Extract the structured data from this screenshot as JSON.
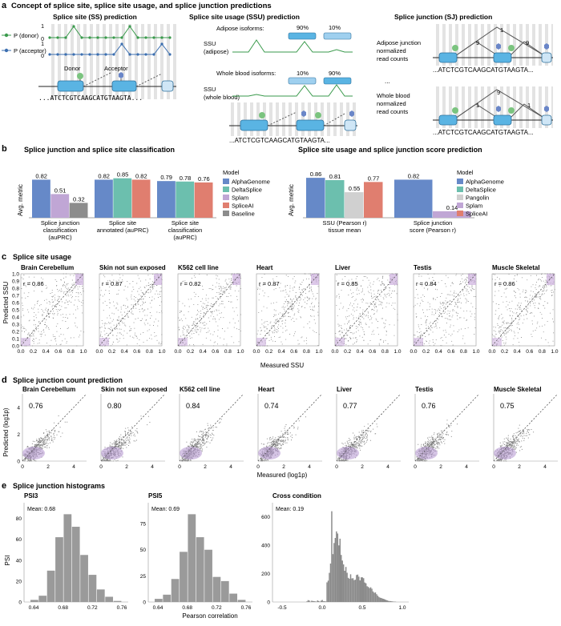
{
  "panel_a": {
    "letter": "a",
    "title": "Concept of splice site, splice site usage, and splice junction predictions",
    "ss": {
      "title": "Splice site (SS) prediction",
      "legend_donor": "P (donor)",
      "legend_acceptor": "P (acceptor)",
      "tick1": "1",
      "tick0": "0",
      "donor_label": "Donor",
      "acceptor_label": "Acceptor",
      "sequence": "...ATCTCGTCAAGCATGTAAGTA..."
    },
    "ssu": {
      "title": "Splice site usage (SSU) prediction",
      "adipose_isoforms": "Adipose isoforms:",
      "adipose_pct1": "90%",
      "adipose_pct2": "10%",
      "ssu_label": "SSU",
      "adipose_sub": "(adipose)",
      "blood_isoforms": "Whole blood isoforms:",
      "blood_pct1": "10%",
      "blood_pct2": "90%",
      "blood_sub": "(whole blood)",
      "sequence": "...ATCTCGTCAAGCATGTAAGTA..."
    },
    "sj": {
      "title": "Splice junction (SJ) prediction",
      "adipose_label": [
        "Adipose junction",
        "normalized",
        "read counts"
      ],
      "ellipsis": "...",
      "blood_label": [
        "Whole blood",
        "normalized",
        "read counts"
      ],
      "adipose_counts": [
        "1",
        "9",
        "9"
      ],
      "blood_counts": [
        "9",
        "1",
        "1"
      ],
      "sequence": "...ATCTCGTCAAGCATGTAAGTA..."
    }
  },
  "panel_b": {
    "letter": "b",
    "left": {
      "title": "Splice junction and splice site classification",
      "ylabel": "Avg. metric",
      "legend_title": "Model",
      "legend": [
        "AlphaGenome",
        "DeltaSplice",
        "Splam",
        "SpliceAI",
        "Baseline"
      ],
      "colors": {
        "AlphaGenome": "#6689c8",
        "DeltaSplice": "#6cbfae",
        "Splam": "#c0a6d5",
        "SpliceAI": "#e07e6f",
        "Baseline": "#8c8c8c"
      }
    },
    "right": {
      "title": "Splice site usage and splice junction score prediction",
      "ylabel": "Avg. metric",
      "legend_title": "Model",
      "legend": [
        "AlphaGenome",
        "DeltaSplice",
        "Pangolin",
        "Splam",
        "SpliceAI"
      ],
      "colors": {
        "AlphaGenome": "#6689c8",
        "DeltaSplice": "#6cbfae",
        "Pangolin": "#d0d0d0",
        "Splam": "#c0a6d5",
        "SpliceAI": "#e07e6f"
      }
    }
  },
  "panel_c": {
    "letter": "c",
    "title": "Splice site usage",
    "ylabel": "Predicted SSU",
    "xlabel": "Measured SSU",
    "yticks": [
      "0.0",
      "0.1",
      "0.2",
      "0.3",
      "0.4",
      "0.5",
      "0.6",
      "0.7",
      "0.8",
      "0.9",
      "1.0"
    ],
    "xticks": [
      "0.0",
      "0.2",
      "0.4",
      "0.6",
      "0.8",
      "1.0"
    ]
  },
  "panel_d": {
    "letter": "d",
    "title": "Splice junction count prediction",
    "ylabel": "Predicted (log1p)",
    "xlabel": "Measured (log1p)",
    "yticks": [
      "0",
      "2",
      "4"
    ],
    "xticks": [
      "0",
      "2",
      "4"
    ]
  },
  "panel_e": {
    "letter": "e",
    "title": "Splice junction histograms",
    "ylabel": "PSI",
    "xlabel": "Pearson correlation"
  },
  "chart_data": [
    {
      "type": "bar",
      "title": "Splice junction and splice site classification",
      "ylabel": "Avg. metric",
      "categories": [
        "Splice junction classification (auPRC)",
        "Splice site annotated (auPRC)",
        "Splice site classification (auPRC)"
      ],
      "series": [
        {
          "name": "AlphaGenome",
          "values": [
            0.82,
            0.82,
            0.79
          ]
        },
        {
          "name": "DeltaSplice",
          "values": [
            null,
            0.85,
            0.78
          ]
        },
        {
          "name": "Splam",
          "values": [
            0.51,
            null,
            null
          ]
        },
        {
          "name": "SpliceAI",
          "values": [
            null,
            0.82,
            0.76
          ]
        },
        {
          "name": "Baseline",
          "values": [
            0.32,
            null,
            null
          ]
        }
      ],
      "ylim": [
        0,
        1
      ]
    },
    {
      "type": "bar",
      "title": "Splice site usage and splice junction score prediction",
      "ylabel": "Avg. metric",
      "categories": [
        "SSU (Pearson r) tissue mean",
        "Splice junction score (Pearson r)"
      ],
      "series": [
        {
          "name": "AlphaGenome",
          "values": [
            0.86,
            0.82
          ]
        },
        {
          "name": "DeltaSplice",
          "values": [
            0.81,
            null
          ]
        },
        {
          "name": "Pangolin",
          "values": [
            0.55,
            null
          ]
        },
        {
          "name": "Splam",
          "values": [
            null,
            0.14
          ]
        },
        {
          "name": "SpliceAI",
          "values": [
            0.77,
            null
          ]
        }
      ],
      "ylim": [
        0,
        1
      ]
    },
    {
      "type": "scatter",
      "title": "Splice site usage",
      "xlabel": "Measured SSU",
      "ylabel": "Predicted SSU",
      "xlim": [
        0,
        1
      ],
      "ylim": [
        0,
        1
      ],
      "panels": [
        {
          "name": "Brain Cerebellum",
          "r": "r = 0.86"
        },
        {
          "name": "Skin not sun exposed",
          "r": "r = 0.87"
        },
        {
          "name": "K562 cell line",
          "r": "r = 0.82"
        },
        {
          "name": "Heart",
          "r": "r = 0.87"
        },
        {
          "name": "Liver",
          "r": "r = 0.85"
        },
        {
          "name": "Testis",
          "r": "r = 0.84"
        },
        {
          "name": "Muscle Skeletal",
          "r": "r = 0.86"
        }
      ]
    },
    {
      "type": "scatter",
      "title": "Splice junction count prediction",
      "xlabel": "Measured (log1p)",
      "ylabel": "Predicted (log1p)",
      "xlim": [
        0,
        5
      ],
      "ylim": [
        0,
        5
      ],
      "panels": [
        {
          "name": "Brain Cerebellum",
          "r": "0.76"
        },
        {
          "name": "Skin not sun exposed",
          "r": "0.80"
        },
        {
          "name": "K562 cell line",
          "r": "0.84"
        },
        {
          "name": "Heart",
          "r": "0.74"
        },
        {
          "name": "Liver",
          "r": "0.77"
        },
        {
          "name": "Testis",
          "r": "0.76"
        },
        {
          "name": "Muscle Skeletal",
          "r": "0.75"
        }
      ]
    },
    {
      "type": "bar",
      "title": "PSI3",
      "mean_label": "Mean: 0.68",
      "bins": [
        0.63,
        0.645,
        0.66,
        0.67,
        0.68,
        0.69,
        0.7,
        0.71,
        0.72,
        0.73,
        0.74
      ],
      "values": [
        2,
        6,
        30,
        62,
        84,
        72,
        45,
        26,
        12,
        5,
        1
      ],
      "xticks": [
        "0.64",
        "0.68",
        "0.72",
        "0.76"
      ],
      "yticks": [
        "0",
        "20",
        "40",
        "60",
        "80"
      ],
      "ylim": [
        0,
        95
      ]
    },
    {
      "type": "bar",
      "title": "PSI5",
      "mean_label": "Mean: 0.69",
      "bins": [
        0.63,
        0.645,
        0.66,
        0.67,
        0.68,
        0.69,
        0.7,
        0.71,
        0.72,
        0.73,
        0.74
      ],
      "values": [
        3,
        7,
        22,
        48,
        84,
        62,
        50,
        24,
        20,
        8,
        2
      ],
      "xticks": [
        "0.64",
        "0.68",
        "0.72",
        "0.76"
      ],
      "yticks": [
        "0",
        "25",
        "50",
        "75"
      ],
      "ylim": [
        0,
        95
      ]
    },
    {
      "type": "bar",
      "title": "Cross condition",
      "mean_label": "Mean: 0.19",
      "xticks": [
        "-0.5",
        "0.0",
        "0.5",
        "1.0"
      ],
      "yticks": [
        "0",
        "200",
        "400",
        "600"
      ],
      "xlim": [
        -0.85,
        1.1
      ],
      "ylim": [
        0,
        700
      ]
    }
  ]
}
